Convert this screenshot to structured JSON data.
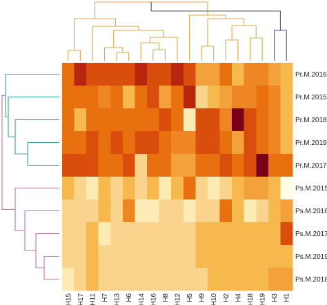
{
  "chart_data": {
    "type": "heatmap",
    "title": "",
    "xlabel": "",
    "ylabel": "",
    "columns": [
      "H15",
      "H17",
      "H11",
      "H7",
      "H13",
      "H6",
      "H14",
      "H16",
      "H8",
      "H12",
      "H5",
      "H9",
      "H10",
      "H2",
      "H4",
      "H18",
      "H19",
      "H3",
      "H1"
    ],
    "rows": [
      "Pr.M.2016",
      "Pr.M.2015",
      "Pr.M.2018",
      "Pr.M.2019",
      "Pr.M.2017",
      "Ps.M.2015",
      "Ps.M.2016",
      "Ps.M.2017",
      "Ps.M.2019",
      "Ps.M.2018"
    ],
    "values": [
      [
        6,
        8,
        7,
        7,
        7,
        7,
        8,
        7,
        7,
        8,
        7,
        4,
        4,
        6,
        3,
        5,
        5,
        4,
        3
      ],
      [
        6,
        6,
        6,
        5,
        6,
        3,
        6,
        7,
        4,
        6,
        8,
        2,
        3,
        4,
        5,
        5,
        6,
        5,
        3
      ],
      [
        6,
        3,
        6,
        6,
        6,
        6,
        6,
        6,
        7,
        6,
        1,
        7,
        7,
        5,
        9,
        7,
        6,
        5,
        3
      ],
      [
        6,
        6,
        7,
        6,
        7,
        6,
        7,
        7,
        6,
        5,
        5,
        7,
        7,
        6,
        4,
        7,
        6,
        5,
        3
      ],
      [
        7,
        7,
        7,
        6,
        6,
        7,
        2,
        6,
        6,
        4,
        4,
        6,
        6,
        7,
        6,
        7,
        9,
        6,
        6
      ],
      [
        3,
        2,
        1,
        3,
        2,
        3,
        2,
        3,
        1,
        3,
        6,
        2,
        1,
        2,
        3,
        4,
        4,
        3,
        0
      ],
      [
        2,
        2,
        2,
        3,
        2,
        5,
        1,
        1,
        2,
        2,
        1,
        2,
        2,
        6,
        3,
        1,
        2,
        3,
        4
      ],
      [
        2,
        2,
        3,
        1,
        2,
        2,
        2,
        2,
        2,
        2,
        2,
        3,
        3,
        3,
        3,
        3,
        3,
        3,
        7
      ],
      [
        2,
        2,
        3,
        2,
        2,
        2,
        2,
        2,
        2,
        2,
        2,
        3,
        3,
        3,
        3,
        3,
        3,
        3,
        3
      ],
      [
        1,
        2,
        3,
        2,
        2,
        2,
        2,
        2,
        2,
        2,
        2,
        2,
        3,
        3,
        3,
        3,
        3,
        4,
        4
      ]
    ],
    "value_range": [
      0,
      9
    ],
    "colors": [
      "#fffde6",
      "#fcebb4",
      "#fad38c",
      "#f7b84d",
      "#f3a13a",
      "#ee8624",
      "#e8700f",
      "#d94e0c",
      "#b8260e",
      "#7a0018"
    ],
    "row_labels": [
      "Pr.M.2016",
      "Pr.M.2015",
      "Pr.M.2018",
      "Pr.M.2019",
      "Pr.M.2017",
      "Ps.M.2015",
      "Ps.M.2016",
      "Ps.M.2017",
      "Ps.M.2019",
      "Ps.M.2018"
    ],
    "column_labels": [
      "H15",
      "H17",
      "H11",
      "H7",
      "H13",
      "H6",
      "H14",
      "H16",
      "H8",
      "H12",
      "H5",
      "H9",
      "H10",
      "H2",
      "H4",
      "H18",
      "H19",
      "H3",
      "H1"
    ],
    "dendrogram_colors": {
      "row_cluster_1": "#3aa39a",
      "row_cluster_2": "#c3768e",
      "col_cluster_1": "#d9a94c",
      "col_cluster_2": "#5b4a9b",
      "col_root_right": "#555555"
    },
    "legend": "none",
    "grid": false
  }
}
